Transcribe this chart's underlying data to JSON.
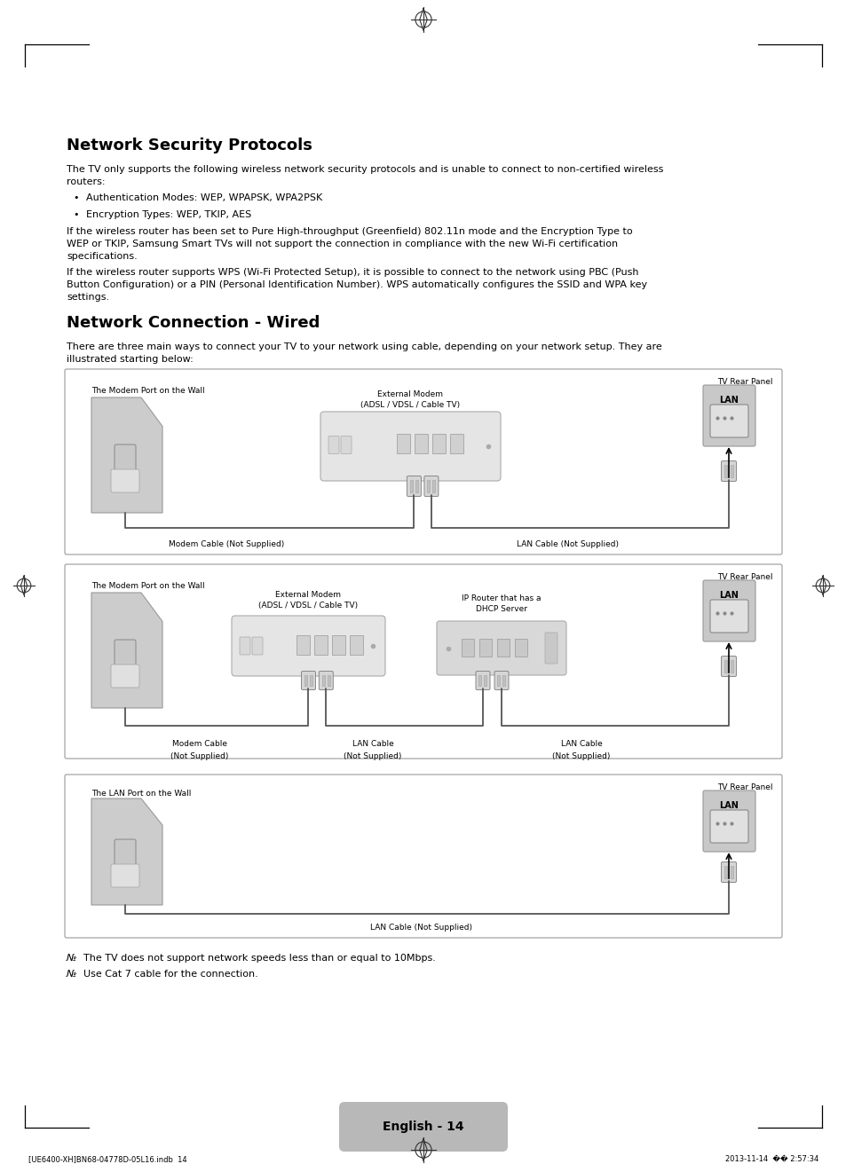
{
  "bg_color": "#ffffff",
  "page_width": 9.54,
  "page_height": 13.21,
  "title1": "Network Security Protocols",
  "title2": "Network Connection - Wired",
  "body1_line1": "The TV only supports the following wireless network security protocols and is unable to connect to non-certified wireless",
  "body1_line2": "routers:",
  "bullet1": "Authentication Modes: WEP, WPAPSK, WPA2PSK",
  "bullet2": "Encryption Types: WEP, TKIP, AES",
  "body2_line1": "If the wireless router has been set to Pure High-throughput (Greenfield) 802.11n mode and the Encryption Type to",
  "body2_line2": "WEP or TKIP, Samsung Smart TVs will not support the connection in compliance with the new Wi-Fi certification",
  "body2_line3": "specifications.",
  "body3_line1": "If the wireless router supports WPS (Wi-Fi Protected Setup), it is possible to connect to the network using PBC (Push",
  "body3_line2": "Button Configuration) or a PIN (Personal Identification Number). WPS automatically configures the SSID and WPA key",
  "body3_line3": "settings.",
  "body4_line1": "There are three main ways to connect your TV to your network using cable, depending on your network setup. They are",
  "body4_line2": "illustrated starting below:",
  "note1": "The TV does not support network speeds less than or equal to 10Mbps.",
  "note2": "Use Cat 7 cable for the connection.",
  "footer_left": "[UE6400-XH]BN68-04778D-05L16.indb  14",
  "footer_right": "2013-11-14  �� 2:57:34",
  "footer_center": "English - 14",
  "diagram1_label_wall": "The Modem Port on the Wall",
  "diagram1_label_modem_line1": "External Modem",
  "diagram1_label_modem_line2": "(ADSL / VDSL / Cable TV)",
  "diagram1_label_tv": "TV Rear Panel",
  "diagram1_cable1": "Modem Cable (Not Supplied)",
  "diagram1_cable2": "LAN Cable (Not Supplied)",
  "diagram2_label_wall": "The Modem Port on the Wall",
  "diagram2_label_modem_line1": "External Modem",
  "diagram2_label_modem_line2": "(ADSL / VDSL / Cable TV)",
  "diagram2_label_router_line1": "IP Router that has a",
  "diagram2_label_router_line2": "DHCP Server",
  "diagram2_label_tv": "TV Rear Panel",
  "diagram2_cable1_line1": "Modem Cable",
  "diagram2_cable1_line2": "(Not Supplied)",
  "diagram2_cable2_line1": "LAN Cable",
  "diagram2_cable2_line2": "(Not Supplied)",
  "diagram2_cable3_line1": "LAN Cable",
  "diagram2_cable3_line2": "(Not Supplied)",
  "diagram3_label_wall": "The LAN Port on the Wall",
  "diagram3_label_tv": "TV Rear Panel",
  "diagram3_cable1": "LAN Cable (Not Supplied)",
  "lan_label": "LAN"
}
